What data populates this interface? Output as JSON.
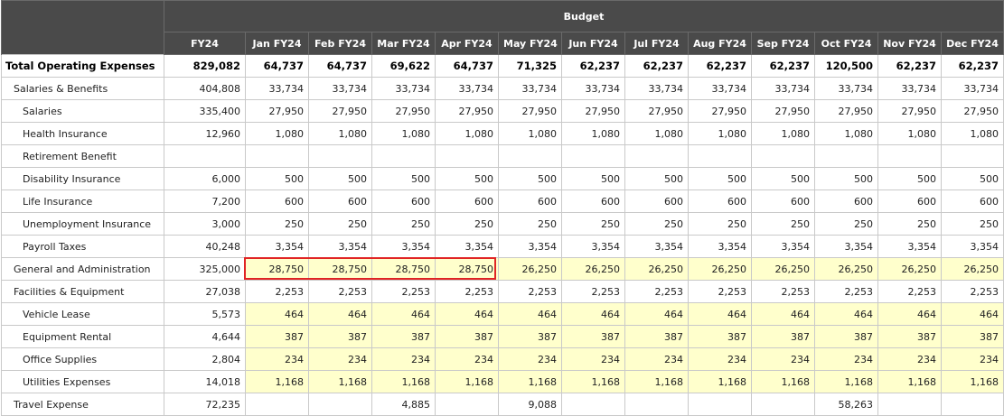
{
  "header": {
    "group_label": "Budget",
    "columns": [
      "FY24",
      "Jan FY24",
      "Feb FY24",
      "Mar FY24",
      "Apr FY24",
      "May FY24",
      "Jun FY24",
      "Jul FY24",
      "Aug FY24",
      "Sep FY24",
      "Oct FY24",
      "Nov FY24",
      "Dec FY24"
    ]
  },
  "rows": [
    {
      "label": "Total Operating Expenses",
      "values": [
        "829,082",
        "64,737",
        "64,737",
        "69,622",
        "64,737",
        "71,325",
        "62,237",
        "62,237",
        "62,237",
        "62,237",
        "120,500",
        "62,237",
        "62,237"
      ]
    },
    {
      "label": "Salaries & Benefits",
      "values": [
        "404,808",
        "33,734",
        "33,734",
        "33,734",
        "33,734",
        "33,734",
        "33,734",
        "33,734",
        "33,734",
        "33,734",
        "33,734",
        "33,734",
        "33,734"
      ]
    },
    {
      "label": "Salaries",
      "values": [
        "335,400",
        "27,950",
        "27,950",
        "27,950",
        "27,950",
        "27,950",
        "27,950",
        "27,950",
        "27,950",
        "27,950",
        "27,950",
        "27,950",
        "27,950"
      ]
    },
    {
      "label": "Health Insurance",
      "values": [
        "12,960",
        "1,080",
        "1,080",
        "1,080",
        "1,080",
        "1,080",
        "1,080",
        "1,080",
        "1,080",
        "1,080",
        "1,080",
        "1,080",
        "1,080"
      ]
    },
    {
      "label": "Retirement Benefit",
      "values": [
        "",
        "",
        "",
        "",
        "",
        "",
        "",
        "",
        "",
        "",
        "",
        "",
        ""
      ]
    },
    {
      "label": "Disability  Insurance",
      "values": [
        "6,000",
        "500",
        "500",
        "500",
        "500",
        "500",
        "500",
        "500",
        "500",
        "500",
        "500",
        "500",
        "500"
      ]
    },
    {
      "label": "Life Insurance",
      "values": [
        "7,200",
        "600",
        "600",
        "600",
        "600",
        "600",
        "600",
        "600",
        "600",
        "600",
        "600",
        "600",
        "600"
      ]
    },
    {
      "label": "Unemployment Insurance",
      "values": [
        "3,000",
        "250",
        "250",
        "250",
        "250",
        "250",
        "250",
        "250",
        "250",
        "250",
        "250",
        "250",
        "250"
      ]
    },
    {
      "label": "Payroll Taxes",
      "values": [
        "40,248",
        "3,354",
        "3,354",
        "3,354",
        "3,354",
        "3,354",
        "3,354",
        "3,354",
        "3,354",
        "3,354",
        "3,354",
        "3,354",
        "3,354"
      ]
    },
    {
      "label": "General and Administration",
      "values": [
        "325,000",
        "28,750",
        "28,750",
        "28,750",
        "28,750",
        "26,250",
        "26,250",
        "26,250",
        "26,250",
        "26,250",
        "26,250",
        "26,250",
        "26,250"
      ]
    },
    {
      "label": "Facilities & Equipment",
      "values": [
        "27,038",
        "2,253",
        "2,253",
        "2,253",
        "2,253",
        "2,253",
        "2,253",
        "2,253",
        "2,253",
        "2,253",
        "2,253",
        "2,253",
        "2,253"
      ]
    },
    {
      "label": "Vehicle Lease",
      "values": [
        "5,573",
        "464",
        "464",
        "464",
        "464",
        "464",
        "464",
        "464",
        "464",
        "464",
        "464",
        "464",
        "464"
      ]
    },
    {
      "label": "Equipment Rental",
      "values": [
        "4,644",
        "387",
        "387",
        "387",
        "387",
        "387",
        "387",
        "387",
        "387",
        "387",
        "387",
        "387",
        "387"
      ]
    },
    {
      "label": "Office Supplies",
      "values": [
        "2,804",
        "234",
        "234",
        "234",
        "234",
        "234",
        "234",
        "234",
        "234",
        "234",
        "234",
        "234",
        "234"
      ]
    },
    {
      "label": "Utilities Expenses",
      "values": [
        "14,018",
        "1,168",
        "1,168",
        "1,168",
        "1,168",
        "1,168",
        "1,168",
        "1,168",
        "1,168",
        "1,168",
        "1,168",
        "1,168",
        "1,168"
      ]
    },
    {
      "label": "Travel Expense",
      "values": [
        "72,235",
        "",
        "",
        "4,885",
        "",
        "9,088",
        "",
        "",
        "",
        "",
        "58,263",
        "",
        ""
      ]
    }
  ],
  "colors": {
    "header_bg": "#4a4a4a",
    "editable_cell_bg": "#ffffcc",
    "selection_border": "#e02424"
  }
}
